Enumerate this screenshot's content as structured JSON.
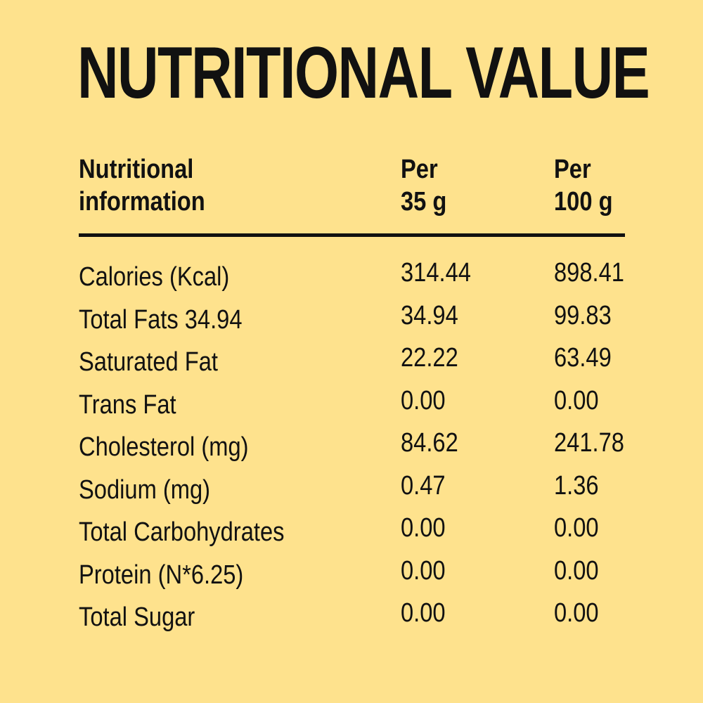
{
  "title": "NUTRITIONAL VALUE",
  "colors": {
    "background": "#FEE28D",
    "text": "#111111"
  },
  "table": {
    "headers": [
      [
        "Nutritional",
        "information"
      ],
      [
        "Per",
        "35 g"
      ],
      [
        "Per",
        "100 g"
      ]
    ],
    "rows": [
      [
        "Calories (Kcal)",
        "314.44",
        "898.41"
      ],
      [
        "Total Fats 34.94",
        "34.94",
        "99.83"
      ],
      [
        "Saturated Fat",
        "22.22",
        "63.49"
      ],
      [
        "Trans Fat",
        "0.00",
        "0.00"
      ],
      [
        "Cholesterol (mg)",
        "84.62",
        "241.78"
      ],
      [
        "Sodium (mg)",
        "0.47",
        "1.36"
      ],
      [
        "Total Carbohydrates",
        "0.00",
        "0.00"
      ],
      [
        "Protein (N*6.25)",
        "0.00",
        "0.00"
      ],
      [
        "Total Sugar",
        "0.00",
        "0.00"
      ]
    ]
  }
}
